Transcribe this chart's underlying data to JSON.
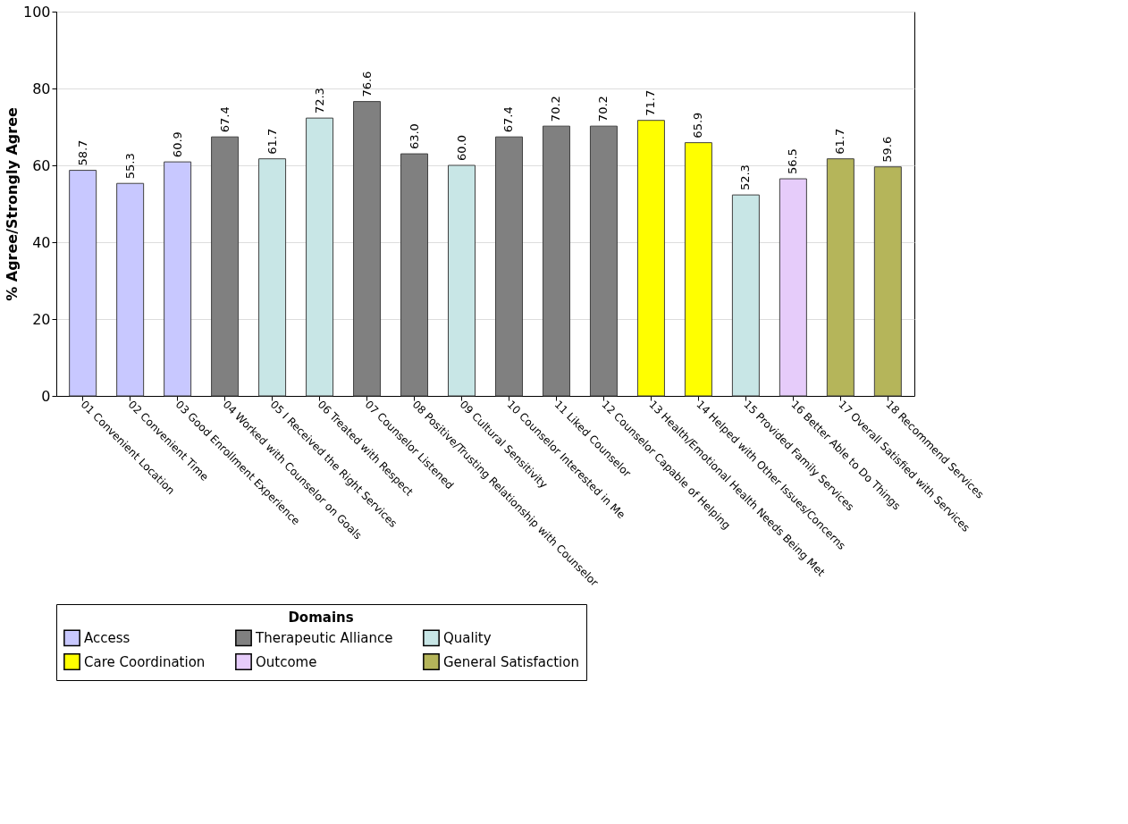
{
  "chart_data": {
    "type": "bar",
    "ylabel": "% Agree/Strongly Agree",
    "legend_title": "Domains",
    "categories": [
      "01 Convenient Location",
      "02 Convenient Time",
      "03 Good Enrollment Experience",
      "04 Worked with Counselor on Goals",
      "05 I Received the Right Services",
      "06 Treated with Respect",
      "07 Counselor Listened",
      "08 Positive/Trusting Relationship with Counselor",
      "09 Cultural Sensitivity",
      "10 Counselor Interested in Me",
      "11 Liked Counselor",
      "12 Counselor Capable of Helping",
      "13 Health/Emotional Health Needs Being Met",
      "14 Helped with Other Issues/Concerns",
      "15 Provided Family Services",
      "16 Better Able to Do Things",
      "17 Overall Satisfied with Services",
      "18 Recommend Services"
    ],
    "series": [
      {
        "name": "Access",
        "color": "#c8c8ff",
        "values": [
          58.7,
          55.3,
          60.9,
          null,
          null,
          null,
          null,
          null,
          null,
          null,
          null,
          null,
          null,
          null,
          null,
          null,
          null,
          null
        ],
        "value_labels": [
          "58.7",
          "55.3",
          "60.9",
          null,
          null,
          null,
          null,
          null,
          null,
          null,
          null,
          null,
          null,
          null,
          null,
          null,
          null,
          null
        ]
      },
      {
        "name": "Therapeutic Alliance",
        "color": "#808080",
        "values": [
          null,
          null,
          null,
          67.4,
          null,
          null,
          76.6,
          63.0,
          null,
          67.4,
          70.2,
          70.2,
          null,
          null,
          null,
          null,
          null,
          null
        ],
        "value_labels": [
          null,
          null,
          null,
          "67.4",
          null,
          null,
          "76.6",
          "63.0",
          null,
          "67.4",
          "70.2",
          "70.2",
          null,
          null,
          null,
          null,
          null,
          null
        ]
      },
      {
        "name": "Quality",
        "color": "#c8e6e6",
        "values": [
          null,
          null,
          null,
          null,
          61.7,
          72.3,
          null,
          null,
          60.0,
          null,
          null,
          null,
          null,
          null,
          52.3,
          null,
          null,
          null
        ],
        "value_labels": [
          null,
          null,
          null,
          null,
          "61.7",
          "72.3",
          null,
          null,
          "60.0",
          null,
          null,
          null,
          null,
          null,
          "52.3",
          null,
          null,
          null
        ]
      },
      {
        "name": "Care Coordination",
        "color": "#ffff00",
        "values": [
          null,
          null,
          null,
          null,
          null,
          null,
          null,
          null,
          null,
          null,
          null,
          null,
          71.7,
          65.9,
          null,
          null,
          null,
          null
        ],
        "value_labels": [
          null,
          null,
          null,
          null,
          null,
          null,
          null,
          null,
          null,
          null,
          null,
          null,
          "71.7",
          "65.9",
          null,
          null,
          null,
          null
        ]
      },
      {
        "name": "Outcome",
        "color": "#e6ccfa",
        "values": [
          null,
          null,
          null,
          null,
          null,
          null,
          null,
          null,
          null,
          null,
          null,
          null,
          null,
          null,
          null,
          56.5,
          null,
          null
        ],
        "value_labels": [
          null,
          null,
          null,
          null,
          null,
          null,
          null,
          null,
          null,
          null,
          null,
          null,
          null,
          null,
          null,
          "56.5",
          null,
          null
        ]
      },
      {
        "name": "General Satisfaction",
        "color": "#b5b55a",
        "values": [
          null,
          null,
          null,
          null,
          null,
          null,
          null,
          null,
          null,
          null,
          null,
          null,
          null,
          null,
          null,
          null,
          61.7,
          59.6
        ],
        "value_labels": [
          null,
          null,
          null,
          null,
          null,
          null,
          null,
          null,
          null,
          null,
          null,
          null,
          null,
          null,
          null,
          null,
          "61.7",
          "59.6"
        ]
      }
    ],
    "ylim": [
      0,
      100
    ],
    "yticks": [
      0,
      20,
      40,
      60,
      80,
      100
    ],
    "grid": "y",
    "legend": "bottom"
  }
}
